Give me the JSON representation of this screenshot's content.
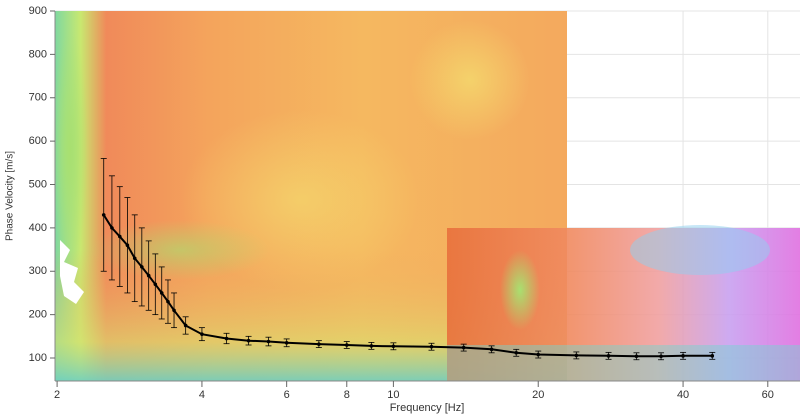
{
  "chart_data": {
    "type": "line",
    "x_label": "Frequency [Hz]",
    "y_label": "Phase Velocity [m/s]",
    "xscale": "log",
    "xlim": [
      1.98,
      70
    ],
    "ylim": [
      47,
      900
    ],
    "xticks": [
      2,
      4,
      6,
      8,
      10,
      20,
      40,
      60
    ],
    "yticks": [
      100,
      200,
      300,
      400,
      500,
      600,
      700,
      800,
      900
    ],
    "grid": true,
    "x": [
      2.5,
      2.6,
      2.7,
      2.8,
      2.9,
      3.0,
      3.1,
      3.2,
      3.3,
      3.4,
      3.5,
      3.7,
      4.0,
      4.5,
      5,
      5.5,
      6,
      7,
      8,
      9,
      10,
      12,
      14,
      16,
      18,
      20,
      24,
      28,
      32,
      36,
      40,
      46
    ],
    "series": [
      {
        "color": "#000000",
        "values": [
          430,
          400,
          380,
          360,
          330,
          310,
          290,
          270,
          250,
          230,
          210,
          175,
          155,
          145,
          140,
          138,
          135,
          132,
          130,
          128,
          127,
          126,
          124,
          120,
          112,
          108,
          106,
          105,
          104,
          104,
          105,
          105
        ],
        "errors": [
          130,
          120,
          115,
          110,
          100,
          90,
          80,
          70,
          60,
          50,
          40,
          20,
          15,
          12,
          10,
          10,
          9,
          8,
          8,
          8,
          8,
          8,
          8,
          8,
          8,
          8,
          8,
          8,
          8,
          8,
          8,
          8
        ]
      }
    ]
  }
}
